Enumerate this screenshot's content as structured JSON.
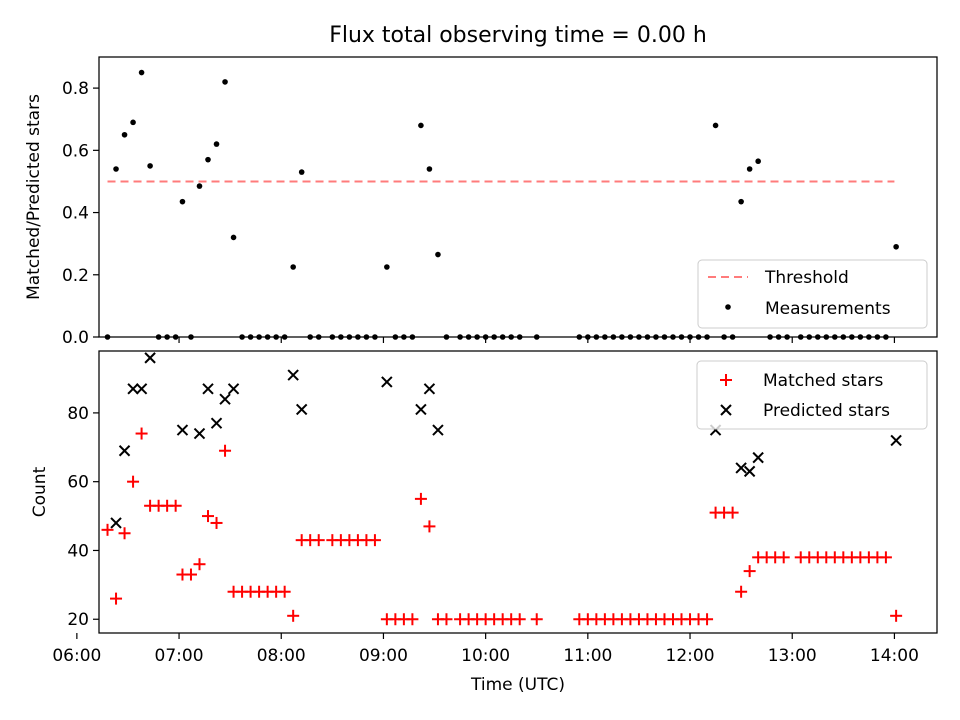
{
  "figure": {
    "title": "Flux total observing time = 0.00 h",
    "xlabel": "Time (UTC)"
  },
  "colors": {
    "threshold": "#ff7b7b",
    "measurements": "#000000",
    "matched": "#ff0000",
    "predicted": "#000000"
  },
  "chart_data": [
    {
      "type": "scatter",
      "name": "top-panel",
      "ylabel": "Matched/Predicted stars",
      "ylim": [
        0,
        0.9
      ],
      "yticks": [
        0.0,
        0.2,
        0.4,
        0.6,
        0.8
      ],
      "ytick_labels": [
        "0.0",
        "0.2",
        "0.4",
        "0.6",
        "0.8"
      ],
      "xlim": [
        "06:13",
        "14:25"
      ],
      "legend": {
        "placement": "lower-right",
        "entries": [
          "Threshold",
          "Measurements"
        ]
      },
      "threshold": {
        "name": "Threshold",
        "value": 0.5,
        "x_start": "06:18",
        "x_end": "14:00",
        "style": "dashed"
      },
      "series": [
        {
          "name": "Measurements",
          "marker": "dot",
          "points": [
            [
              "06:18",
              0.0
            ],
            [
              "06:23",
              0.54
            ],
            [
              "06:28",
              0.65
            ],
            [
              "06:33",
              0.69
            ],
            [
              "06:38",
              0.85
            ],
            [
              "06:43",
              0.55
            ],
            [
              "06:48",
              0.0
            ],
            [
              "06:53",
              0.0
            ],
            [
              "06:58",
              0.0
            ],
            [
              "07:02",
              0.435
            ],
            [
              "07:07",
              0.0
            ],
            [
              "07:12",
              0.485
            ],
            [
              "07:17",
              0.57
            ],
            [
              "07:22",
              0.62
            ],
            [
              "07:27",
              0.82
            ],
            [
              "07:32",
              0.32
            ],
            [
              "07:37",
              0.0
            ],
            [
              "07:42",
              0.0
            ],
            [
              "07:47",
              0.0
            ],
            [
              "07:52",
              0.0
            ],
            [
              "07:57",
              0.0
            ],
            [
              "08:02",
              0.0
            ],
            [
              "08:07",
              0.225
            ],
            [
              "08:12",
              0.53
            ],
            [
              "08:17",
              0.0
            ],
            [
              "08:22",
              0.0
            ],
            [
              "08:30",
              0.0
            ],
            [
              "08:35",
              0.0
            ],
            [
              "08:40",
              0.0
            ],
            [
              "08:45",
              0.0
            ],
            [
              "08:50",
              0.0
            ],
            [
              "08:55",
              0.0
            ],
            [
              "09:02",
              0.225
            ],
            [
              "09:07",
              0.0
            ],
            [
              "09:12",
              0.0
            ],
            [
              "09:17",
              0.0
            ],
            [
              "09:22",
              0.68
            ],
            [
              "09:27",
              0.54
            ],
            [
              "09:32",
              0.265
            ],
            [
              "09:37",
              0.0
            ],
            [
              "09:45",
              0.0
            ],
            [
              "09:50",
              0.0
            ],
            [
              "09:55",
              0.0
            ],
            [
              "10:00",
              0.0
            ],
            [
              "10:05",
              0.0
            ],
            [
              "10:10",
              0.0
            ],
            [
              "10:15",
              0.0
            ],
            [
              "10:20",
              0.0
            ],
            [
              "10:30",
              0.0
            ],
            [
              "10:55",
              0.0
            ],
            [
              "11:00",
              0.0
            ],
            [
              "11:05",
              0.0
            ],
            [
              "11:10",
              0.0
            ],
            [
              "11:15",
              0.0
            ],
            [
              "11:20",
              0.0
            ],
            [
              "11:25",
              0.0
            ],
            [
              "11:30",
              0.0
            ],
            [
              "11:35",
              0.0
            ],
            [
              "11:40",
              0.0
            ],
            [
              "11:45",
              0.0
            ],
            [
              "11:50",
              0.0
            ],
            [
              "11:55",
              0.0
            ],
            [
              "12:00",
              0.0
            ],
            [
              "12:05",
              0.0
            ],
            [
              "12:10",
              0.0
            ],
            [
              "12:15",
              0.68
            ],
            [
              "12:20",
              0.0
            ],
            [
              "12:25",
              0.0
            ],
            [
              "12:30",
              0.435
            ],
            [
              "12:35",
              0.54
            ],
            [
              "12:40",
              0.565
            ],
            [
              "12:47",
              0.0
            ],
            [
              "12:52",
              0.0
            ],
            [
              "12:57",
              0.0
            ],
            [
              "13:05",
              0.0
            ],
            [
              "13:10",
              0.0
            ],
            [
              "13:15",
              0.0
            ],
            [
              "13:20",
              0.0
            ],
            [
              "13:25",
              0.0
            ],
            [
              "13:30",
              0.0
            ],
            [
              "13:35",
              0.0
            ],
            [
              "13:40",
              0.0
            ],
            [
              "13:45",
              0.0
            ],
            [
              "13:50",
              0.0
            ],
            [
              "13:55",
              0.0
            ],
            [
              "14:01",
              0.29
            ]
          ]
        }
      ]
    },
    {
      "type": "scatter",
      "name": "bottom-panel",
      "ylabel": "Count",
      "ylim": [
        16,
        98
      ],
      "yticks": [
        20,
        40,
        60,
        80
      ],
      "ytick_labels": [
        "20",
        "40",
        "60",
        "80"
      ],
      "xlim": [
        "06:13",
        "14:25"
      ],
      "xticks": [
        "06:00",
        "07:00",
        "08:00",
        "09:00",
        "10:00",
        "11:00",
        "12:00",
        "13:00",
        "14:00"
      ],
      "xtick_labels": [
        "06:00",
        "07:00",
        "08:00",
        "09:00",
        "10:00",
        "11:00",
        "12:00",
        "13:00",
        "14:00"
      ],
      "legend": {
        "placement": "upper-right",
        "entries": [
          "Matched stars",
          "Predicted stars"
        ]
      },
      "series": [
        {
          "name": "Matched stars",
          "marker": "plus",
          "points": [
            [
              "06:18",
              46
            ],
            [
              "06:23",
              26
            ],
            [
              "06:28",
              45
            ],
            [
              "06:33",
              60
            ],
            [
              "06:38",
              74
            ],
            [
              "06:43",
              53
            ],
            [
              "06:48",
              53
            ],
            [
              "06:53",
              53
            ],
            [
              "06:58",
              53
            ],
            [
              "07:02",
              33
            ],
            [
              "07:07",
              33
            ],
            [
              "07:12",
              36
            ],
            [
              "07:17",
              50
            ],
            [
              "07:22",
              48
            ],
            [
              "07:27",
              69
            ],
            [
              "07:32",
              28
            ],
            [
              "07:37",
              28
            ],
            [
              "07:42",
              28
            ],
            [
              "07:47",
              28
            ],
            [
              "07:52",
              28
            ],
            [
              "07:57",
              28
            ],
            [
              "08:02",
              28
            ],
            [
              "08:07",
              21
            ],
            [
              "08:12",
              43
            ],
            [
              "08:17",
              43
            ],
            [
              "08:22",
              43
            ],
            [
              "08:30",
              43
            ],
            [
              "08:35",
              43
            ],
            [
              "08:40",
              43
            ],
            [
              "08:45",
              43
            ],
            [
              "08:50",
              43
            ],
            [
              "08:55",
              43
            ],
            [
              "09:02",
              20
            ],
            [
              "09:07",
              20
            ],
            [
              "09:12",
              20
            ],
            [
              "09:17",
              20
            ],
            [
              "09:22",
              55
            ],
            [
              "09:27",
              47
            ],
            [
              "09:32",
              20
            ],
            [
              "09:37",
              20
            ],
            [
              "09:45",
              20
            ],
            [
              "09:50",
              20
            ],
            [
              "09:55",
              20
            ],
            [
              "10:00",
              20
            ],
            [
              "10:05",
              20
            ],
            [
              "10:10",
              20
            ],
            [
              "10:15",
              20
            ],
            [
              "10:20",
              20
            ],
            [
              "10:30",
              20
            ],
            [
              "10:55",
              20
            ],
            [
              "11:00",
              20
            ],
            [
              "11:05",
              20
            ],
            [
              "11:10",
              20
            ],
            [
              "11:15",
              20
            ],
            [
              "11:20",
              20
            ],
            [
              "11:25",
              20
            ],
            [
              "11:30",
              20
            ],
            [
              "11:35",
              20
            ],
            [
              "11:40",
              20
            ],
            [
              "11:45",
              20
            ],
            [
              "11:50",
              20
            ],
            [
              "11:55",
              20
            ],
            [
              "12:00",
              20
            ],
            [
              "12:05",
              20
            ],
            [
              "12:10",
              20
            ],
            [
              "12:15",
              51
            ],
            [
              "12:20",
              51
            ],
            [
              "12:25",
              51
            ],
            [
              "12:30",
              28
            ],
            [
              "12:35",
              34
            ],
            [
              "12:40",
              38
            ],
            [
              "12:45",
              38
            ],
            [
              "12:50",
              38
            ],
            [
              "12:55",
              38
            ],
            [
              "13:05",
              38
            ],
            [
              "13:10",
              38
            ],
            [
              "13:15",
              38
            ],
            [
              "13:20",
              38
            ],
            [
              "13:25",
              38
            ],
            [
              "13:30",
              38
            ],
            [
              "13:35",
              38
            ],
            [
              "13:40",
              38
            ],
            [
              "13:45",
              38
            ],
            [
              "13:50",
              38
            ],
            [
              "13:55",
              38
            ],
            [
              "14:01",
              21
            ]
          ]
        },
        {
          "name": "Predicted stars",
          "marker": "x",
          "points": [
            [
              "06:23",
              48
            ],
            [
              "06:28",
              69
            ],
            [
              "06:33",
              87
            ],
            [
              "06:38",
              87
            ],
            [
              "06:43",
              96
            ],
            [
              "07:02",
              75
            ],
            [
              "07:12",
              74
            ],
            [
              "07:17",
              87
            ],
            [
              "07:22",
              77
            ],
            [
              "07:27",
              84
            ],
            [
              "07:32",
              87
            ],
            [
              "08:07",
              91
            ],
            [
              "08:12",
              81
            ],
            [
              "09:02",
              89
            ],
            [
              "09:22",
              81
            ],
            [
              "09:27",
              87
            ],
            [
              "09:32",
              75
            ],
            [
              "12:15",
              75
            ],
            [
              "12:30",
              64
            ],
            [
              "12:35",
              63
            ],
            [
              "12:40",
              67
            ],
            [
              "14:01",
              72
            ]
          ]
        }
      ]
    }
  ]
}
